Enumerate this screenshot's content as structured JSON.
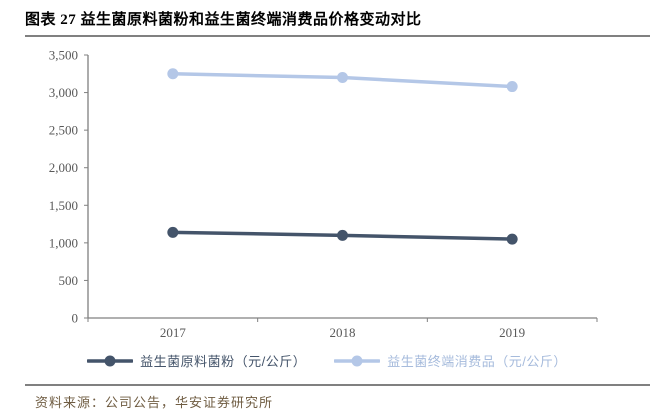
{
  "header": {
    "title": "图表 27 益生菌原料菌粉和益生菌终端消费品价格变动对比"
  },
  "footer": {
    "source": "资料来源：公司公告，华安证券研究所"
  },
  "chart_data": {
    "type": "line",
    "title": "图表 27 益生菌原料菌粉和益生菌终端消费品价格变动对比",
    "categories": [
      "2017",
      "2018",
      "2019"
    ],
    "series": [
      {
        "name": "益生菌原料菌粉（元/公斤）",
        "values": [
          1140,
          1100,
          1050
        ],
        "color": "#44546A",
        "label_color": "#44546A"
      },
      {
        "name": "益生菌终端消费品（元/公斤）",
        "values": [
          3250,
          3200,
          3080
        ],
        "color": "#B4C7E7",
        "label_color": "#A6BBDC"
      }
    ],
    "xlabel": "",
    "ylabel": "",
    "ylim": [
      0,
      3500
    ],
    "ytick_step": 500,
    "yticks": [
      "0",
      "500",
      "1,000",
      "1,500",
      "2,000",
      "2,500",
      "3,000",
      "3,500"
    ],
    "grid": false,
    "legend_position": "bottom",
    "marker": "circle"
  },
  "styles": {
    "axis_color": "#808080",
    "tick_label_color": "#595959",
    "rule_color": "#808080",
    "source_color": "#6F5C42",
    "background": "#FFFFFF"
  }
}
